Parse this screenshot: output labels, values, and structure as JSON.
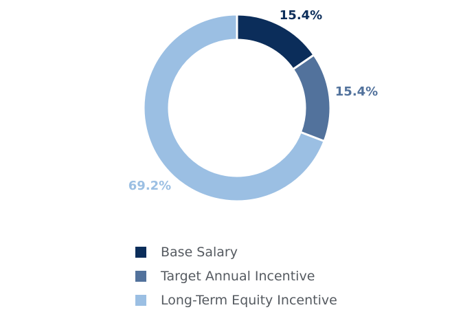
{
  "chart_data": {
    "type": "pie",
    "variant": "donut",
    "title": "",
    "categories": [
      "Base Salary",
      "Target Annual Incentive",
      "Long-Term Equity Incentive"
    ],
    "values": [
      15.4,
      15.4,
      69.2
    ],
    "labels": [
      "15.4%",
      "15.4%",
      "69.2%"
    ],
    "colors": [
      "#0b2d5a",
      "#52729c",
      "#9bbfe3"
    ],
    "legend_position": "bottom"
  }
}
